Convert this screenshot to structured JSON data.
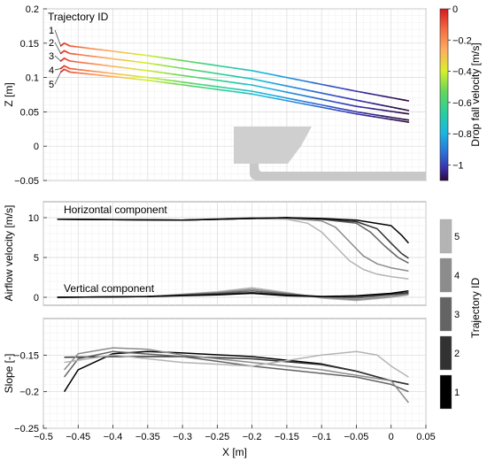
{
  "chart_data": [
    {
      "type": "line",
      "ylabel": "Z [m]",
      "xlim": [
        -0.5,
        0.05
      ],
      "ylim": [
        -0.05,
        0.2
      ],
      "yticks": [
        -0.05,
        0,
        0.05,
        0.1,
        0.15,
        0.2
      ],
      "grid": true,
      "annotation_title": "Trajectory ID",
      "trajectory_labels": [
        "1",
        "2",
        "3",
        "4",
        "5"
      ],
      "colorbar": {
        "label": "Drop fall velocity [m/s]",
        "range": [
          -1.1,
          0
        ],
        "ticks": [
          0,
          -0.2,
          -0.4,
          -0.6,
          -0.8,
          -1
        ],
        "tick_labels": [
          "0",
          "−0.2",
          "−0.4",
          "−0.6",
          "−0.8",
          "−1"
        ]
      },
      "series": [
        {
          "id": "1",
          "x": [
            -0.475,
            -0.47,
            -0.462,
            -0.35,
            -0.2,
            -0.05,
            0.025
          ],
          "y": [
            0.146,
            0.15,
            0.146,
            0.132,
            0.11,
            0.08,
            0.066
          ]
        },
        {
          "id": "2",
          "x": [
            -0.475,
            -0.47,
            -0.462,
            -0.35,
            -0.2,
            -0.05,
            0.025
          ],
          "y": [
            0.135,
            0.139,
            0.135,
            0.121,
            0.098,
            0.067,
            0.052
          ]
        },
        {
          "id": "3",
          "x": [
            -0.475,
            -0.47,
            -0.462,
            -0.35,
            -0.2,
            -0.05,
            0.025
          ],
          "y": [
            0.124,
            0.128,
            0.124,
            0.11,
            0.089,
            0.058,
            0.047
          ]
        },
        {
          "id": "4",
          "x": [
            -0.475,
            -0.47,
            -0.462,
            -0.35,
            -0.2,
            -0.05,
            0.025
          ],
          "y": [
            0.113,
            0.117,
            0.113,
            0.1,
            0.08,
            0.05,
            0.038
          ]
        },
        {
          "id": "5",
          "x": [
            -0.475,
            -0.47,
            -0.462,
            -0.35,
            -0.2,
            -0.05,
            0.025
          ],
          "y": [
            0.108,
            0.112,
            0.108,
            0.096,
            0.076,
            0.047,
            0.035
          ]
        }
      ]
    },
    {
      "type": "line",
      "ylabel": "Airflow velocity [m/s]",
      "xlim": [
        -0.5,
        0.05
      ],
      "ylim": [
        -1,
        12
      ],
      "yticks": [
        0,
        5,
        10
      ],
      "grid": true,
      "annotations": [
        "Horizontal component",
        "Vertical component"
      ],
      "legend": {
        "title": "Trajectory ID",
        "placement": "right",
        "entries": [
          "5",
          "4",
          "3",
          "2",
          "1"
        ],
        "colors": [
          "#b4b4b4",
          "#8c8c8c",
          "#646464",
          "#323232",
          "#000000"
        ]
      },
      "horizontal_series": [
        {
          "id": "5",
          "x": [
            -0.48,
            -0.3,
            -0.2,
            -0.15,
            -0.12,
            -0.1,
            -0.08,
            -0.06,
            -0.04,
            -0.02,
            0.0,
            0.025
          ],
          "y": [
            9.8,
            9.7,
            9.9,
            9.8,
            9.3,
            8.2,
            6.4,
            4.6,
            3.5,
            2.9,
            2.6,
            2.3
          ]
        },
        {
          "id": "4",
          "x": [
            -0.48,
            -0.3,
            -0.2,
            -0.15,
            -0.1,
            -0.08,
            -0.06,
            -0.04,
            -0.02,
            0.0,
            0.025
          ],
          "y": [
            9.8,
            9.7,
            10.0,
            9.9,
            9.6,
            8.8,
            7.0,
            5.2,
            4.2,
            3.7,
            3.3
          ]
        },
        {
          "id": "3",
          "x": [
            -0.48,
            -0.3,
            -0.2,
            -0.15,
            -0.1,
            -0.05,
            -0.03,
            -0.01,
            0.01,
            0.025
          ],
          "y": [
            9.8,
            9.7,
            9.9,
            10.0,
            9.8,
            9.3,
            8.2,
            6.5,
            5.0,
            4.3
          ]
        },
        {
          "id": "2",
          "x": [
            -0.48,
            -0.3,
            -0.2,
            -0.15,
            -0.1,
            -0.05,
            -0.02,
            0.0,
            0.015,
            0.025
          ],
          "y": [
            9.8,
            9.7,
            9.9,
            10.0,
            9.8,
            9.5,
            8.6,
            6.8,
            5.5,
            4.9
          ]
        },
        {
          "id": "1",
          "x": [
            -0.48,
            -0.3,
            -0.2,
            -0.15,
            -0.1,
            -0.05,
            0.0,
            0.015,
            0.025
          ],
          "y": [
            9.8,
            9.7,
            9.9,
            10.0,
            9.9,
            9.7,
            9.0,
            7.8,
            6.8
          ]
        }
      ],
      "vertical_series": [
        {
          "id": "5",
          "x": [
            -0.48,
            -0.35,
            -0.25,
            -0.2,
            -0.15,
            -0.1,
            -0.05,
            0.0,
            0.025
          ],
          "y": [
            0.0,
            0.1,
            0.7,
            1.2,
            0.6,
            -0.1,
            -0.4,
            0.0,
            0.3
          ]
        },
        {
          "id": "4",
          "x": [
            -0.48,
            -0.35,
            -0.25,
            -0.2,
            -0.15,
            -0.1,
            -0.05,
            0.0,
            0.025
          ],
          "y": [
            0.0,
            0.1,
            0.6,
            1.0,
            0.5,
            0.0,
            -0.3,
            0.1,
            0.4
          ]
        },
        {
          "id": "3",
          "x": [
            -0.48,
            -0.35,
            -0.25,
            -0.2,
            -0.15,
            -0.1,
            -0.05,
            0.0,
            0.025
          ],
          "y": [
            0.0,
            0.1,
            0.5,
            0.8,
            0.4,
            0.1,
            -0.1,
            0.3,
            0.5
          ]
        },
        {
          "id": "2",
          "x": [
            -0.48,
            -0.35,
            -0.25,
            -0.2,
            -0.15,
            -0.1,
            -0.05,
            0.0,
            0.025
          ],
          "y": [
            0.0,
            0.1,
            0.4,
            0.6,
            0.3,
            0.1,
            0.1,
            0.4,
            0.6
          ]
        },
        {
          "id": "1",
          "x": [
            -0.48,
            -0.35,
            -0.25,
            -0.2,
            -0.15,
            -0.1,
            -0.05,
            0.0,
            0.025
          ],
          "y": [
            0.0,
            0.1,
            0.3,
            0.5,
            0.2,
            0.1,
            0.2,
            0.5,
            0.8
          ]
        }
      ]
    },
    {
      "type": "line",
      "ylabel": "Slope [-]",
      "xlabel": "X [m]",
      "xlim": [
        -0.5,
        0.05
      ],
      "ylim": [
        -0.25,
        -0.1
      ],
      "yticks": [
        -0.25,
        -0.2,
        -0.15
      ],
      "xticks": [
        -0.5,
        -0.45,
        -0.4,
        -0.35,
        -0.3,
        -0.25,
        -0.2,
        -0.15,
        -0.1,
        -0.05,
        0,
        0.05
      ],
      "xtick_labels": [
        "−0.5",
        "−0.45",
        "−0.4",
        "−0.35",
        "−0.3",
        "−0.25",
        "−0.2",
        "−0.15",
        "−0.1",
        "−0.05",
        "0",
        "0.05"
      ],
      "ytick_labels": [
        "−0.25",
        "−0.2",
        "−0.15"
      ],
      "grid": true,
      "series": [
        {
          "id": "1",
          "x": [
            -0.47,
            -0.45,
            -0.4,
            -0.35,
            -0.3,
            -0.2,
            -0.1,
            -0.05,
            0.0,
            0.025
          ],
          "y": [
            -0.2,
            -0.17,
            -0.148,
            -0.145,
            -0.147,
            -0.152,
            -0.162,
            -0.172,
            -0.185,
            -0.19
          ]
        },
        {
          "id": "2",
          "x": [
            -0.47,
            -0.4,
            -0.3,
            -0.2,
            -0.1,
            -0.05,
            0.0,
            0.025
          ],
          "y": [
            -0.153,
            -0.152,
            -0.152,
            -0.155,
            -0.163,
            -0.172,
            -0.185,
            -0.19
          ]
        },
        {
          "id": "3",
          "x": [
            -0.47,
            -0.45,
            -0.4,
            -0.3,
            -0.2,
            -0.1,
            -0.05,
            0.0,
            0.025
          ],
          "y": [
            -0.18,
            -0.155,
            -0.145,
            -0.152,
            -0.165,
            -0.175,
            -0.18,
            -0.19,
            -0.2
          ]
        },
        {
          "id": "4",
          "x": [
            -0.47,
            -0.45,
            -0.4,
            -0.35,
            -0.3,
            -0.2,
            -0.1,
            0.0,
            0.025
          ],
          "y": [
            -0.17,
            -0.148,
            -0.14,
            -0.142,
            -0.15,
            -0.16,
            -0.17,
            -0.185,
            -0.215
          ]
        },
        {
          "id": "5",
          "x": [
            -0.47,
            -0.4,
            -0.3,
            -0.2,
            -0.1,
            -0.05,
            -0.02,
            0.0,
            0.025
          ],
          "y": [
            -0.16,
            -0.15,
            -0.16,
            -0.165,
            -0.15,
            -0.145,
            -0.15,
            -0.165,
            -0.18
          ]
        }
      ]
    }
  ]
}
